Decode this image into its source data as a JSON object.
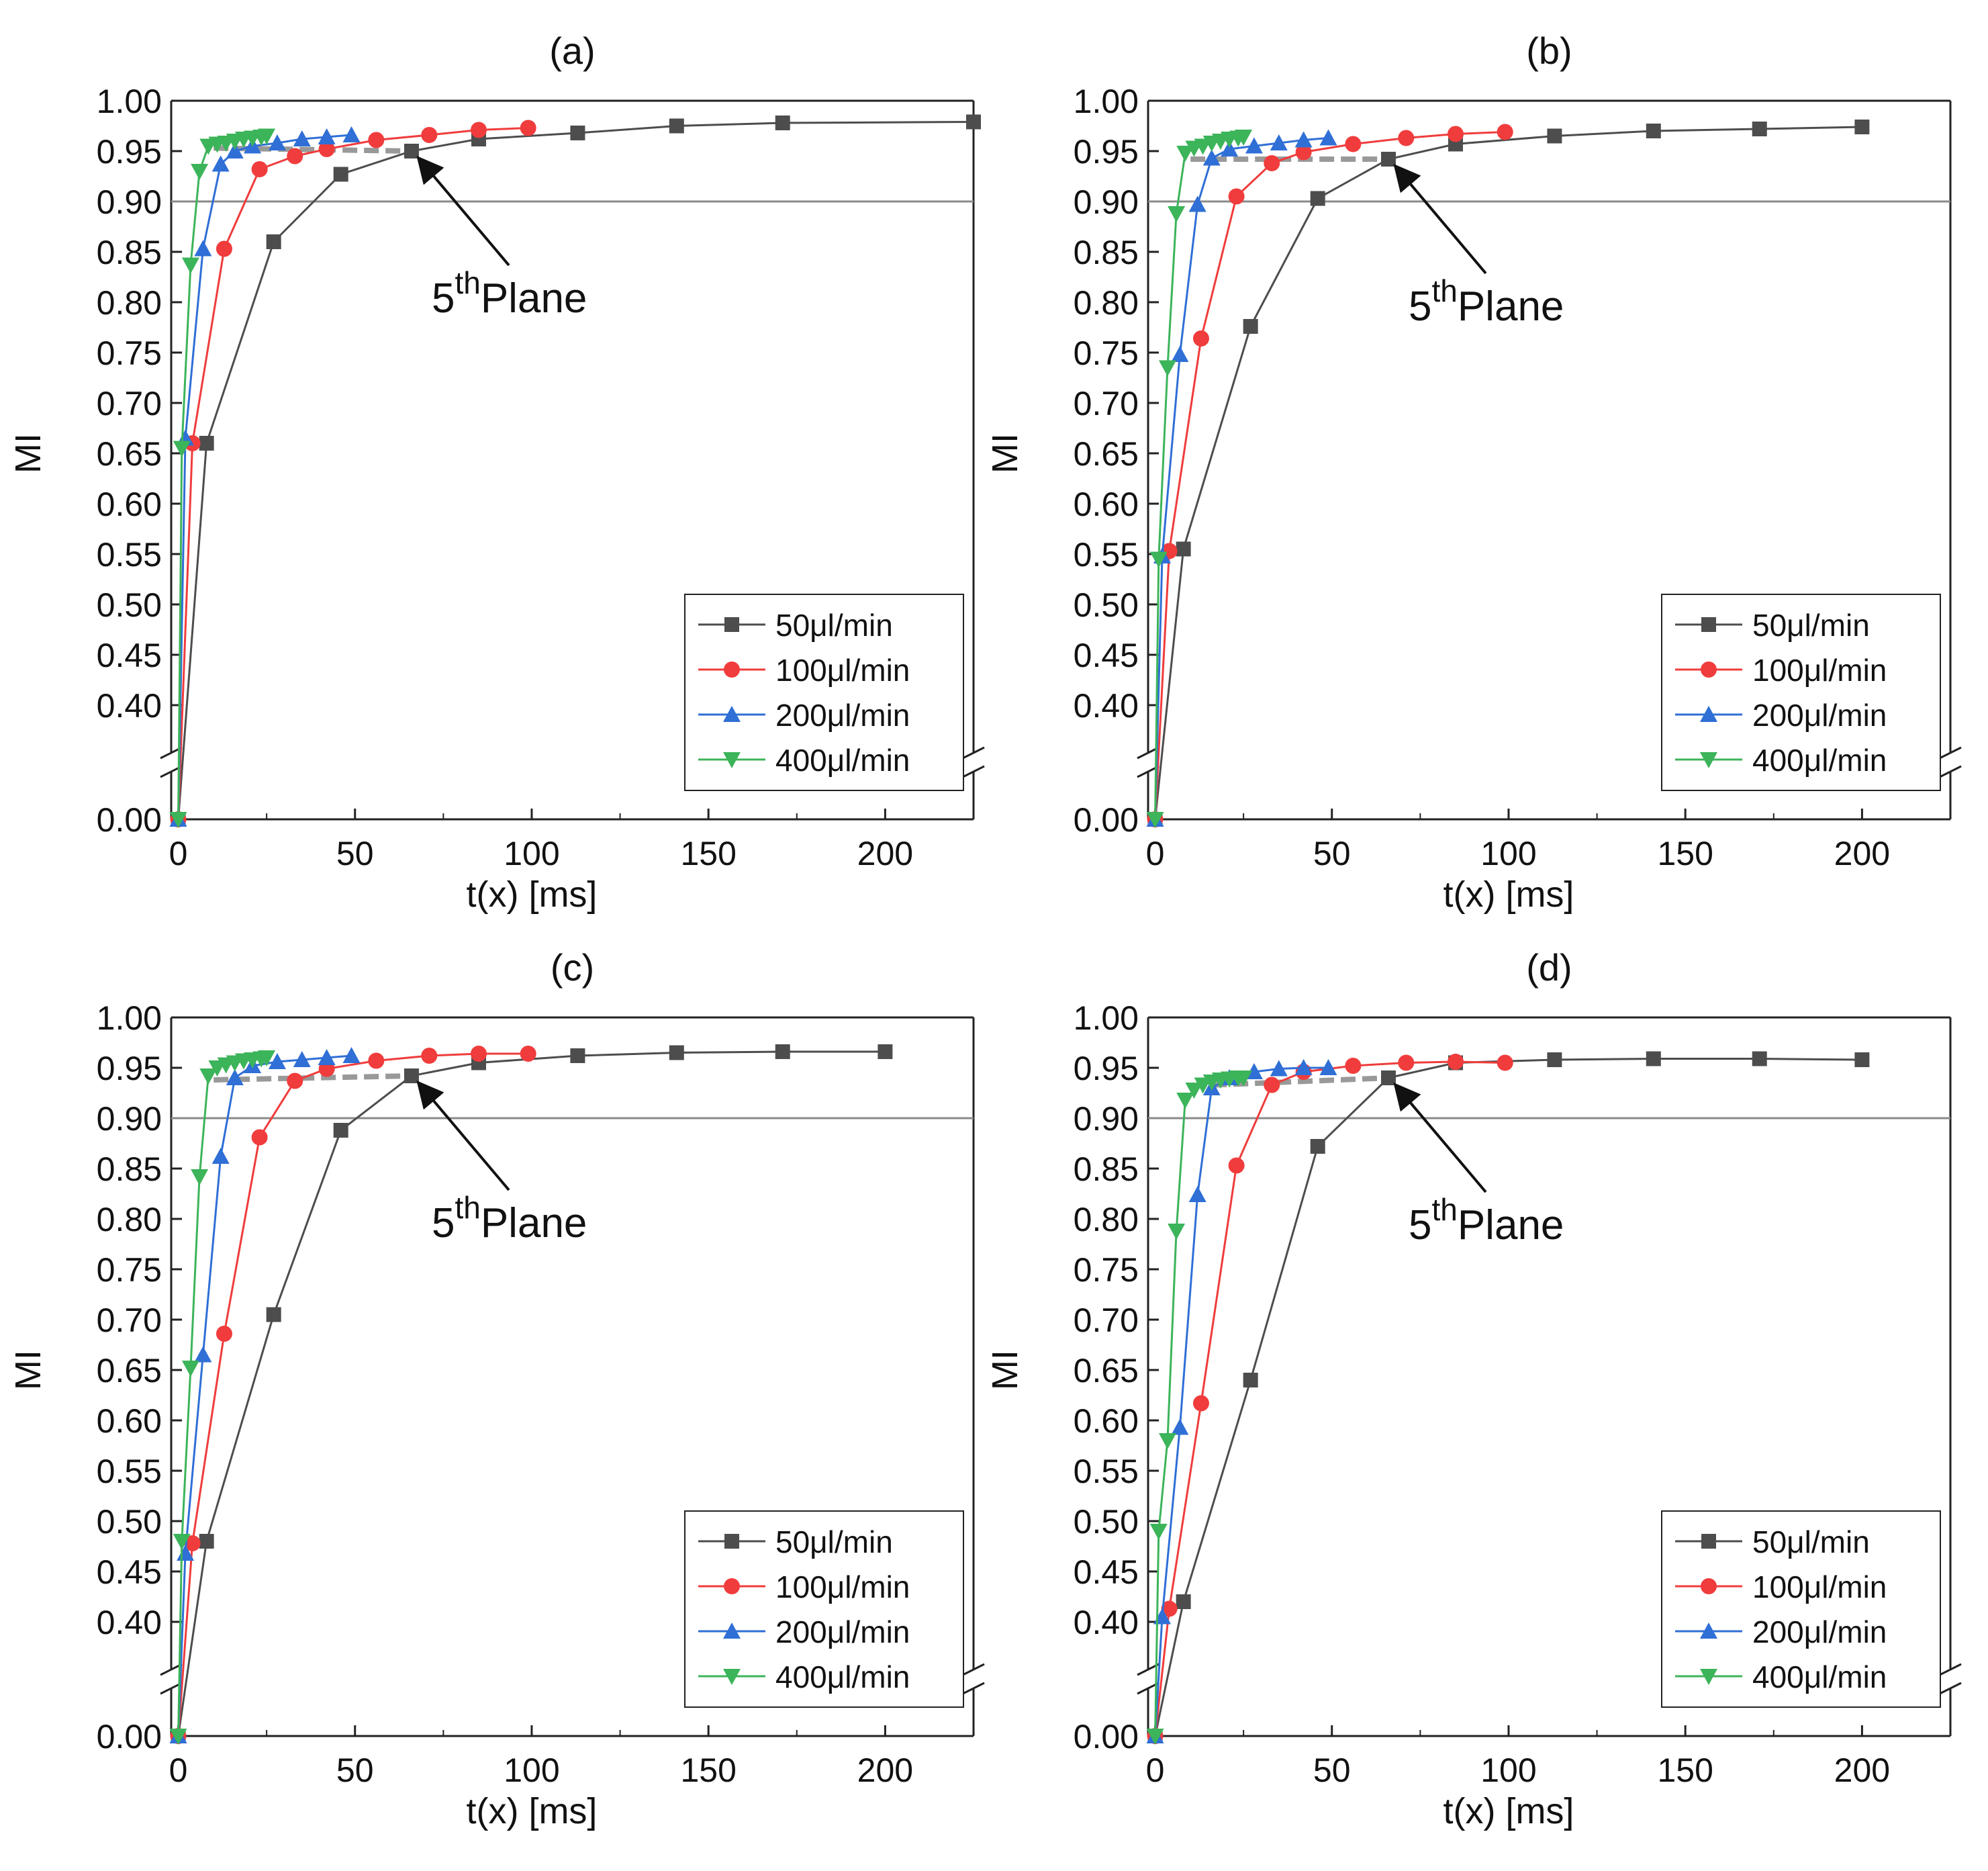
{
  "chart_data": [
    {
      "type": "line",
      "panel_label": "(a)",
      "xlabel": "t(x) [ms]",
      "ylabel": "MI",
      "xlim": [
        -2,
        225
      ],
      "xticks": [
        0,
        50,
        100,
        150,
        200
      ],
      "ylim_upper": [
        0.4,
        1.0
      ],
      "ylim_lower": [
        0.0,
        0.0
      ],
      "yticks": [
        0.0,
        0.4,
        0.45,
        0.5,
        0.55,
        0.6,
        0.65,
        0.7,
        0.75,
        0.8,
        0.85,
        0.9,
        0.95,
        1.0
      ],
      "axis_break": "between 0.00 and 0.40",
      "reference_line": 0.9,
      "annotation": {
        "text": "5",
        "superscript": "th",
        "suffix": "Plane",
        "target_x": 66,
        "target_y": 0.95
      },
      "dashed_line": {
        "from": [
          10,
          0.953
        ],
        "to": [
          66,
          0.95
        ]
      },
      "legend_position": "bottom-right",
      "series": [
        {
          "name": "50μl/min",
          "color": "#4d4d4d",
          "marker": "square",
          "x": [
            0,
            8,
            27,
            46,
            66,
            85,
            113,
            141,
            171,
            225
          ],
          "y": [
            0.0,
            0.66,
            0.86,
            0.927,
            0.95,
            0.962,
            0.968,
            0.975,
            0.978,
            0.979
          ]
        },
        {
          "name": "100μl/min",
          "color": "#f03c3c",
          "marker": "circle",
          "x": [
            0,
            4,
            13,
            23,
            33,
            42,
            56,
            71,
            85,
            99
          ],
          "y": [
            0.0,
            0.66,
            0.853,
            0.932,
            0.945,
            0.952,
            0.961,
            0.966,
            0.971,
            0.973
          ]
        },
        {
          "name": "200μl/min",
          "color": "#2f6fd6",
          "marker": "triangle-up",
          "x": [
            0,
            2,
            7,
            12,
            16,
            21,
            28,
            35,
            42,
            49
          ],
          "y": [
            0.0,
            0.665,
            0.853,
            0.937,
            0.95,
            0.955,
            0.958,
            0.962,
            0.964,
            0.966
          ]
        },
        {
          "name": "400μl/min",
          "color": "#3cb45a",
          "marker": "triangle-down",
          "x": [
            0,
            1,
            3.5,
            6,
            8.5,
            11,
            13.5,
            16,
            18.5,
            21,
            23.5,
            25
          ],
          "y": [
            0.0,
            0.655,
            0.837,
            0.93,
            0.955,
            0.957,
            0.958,
            0.96,
            0.962,
            0.963,
            0.964,
            0.965
          ]
        }
      ]
    },
    {
      "type": "line",
      "panel_label": "(b)",
      "xlabel": "t(x) [ms]",
      "ylabel": "MI",
      "xlim": [
        -2,
        225
      ],
      "xticks": [
        0,
        50,
        100,
        150,
        200
      ],
      "ylim_upper": [
        0.4,
        1.0
      ],
      "ylim_lower": [
        0.0,
        0.0
      ],
      "yticks": [
        0.0,
        0.4,
        0.45,
        0.5,
        0.55,
        0.6,
        0.65,
        0.7,
        0.75,
        0.8,
        0.85,
        0.9,
        0.95,
        1.0
      ],
      "axis_break": "between 0.00 and 0.40",
      "reference_line": 0.9,
      "annotation": {
        "text": "5",
        "superscript": "th",
        "suffix": "Plane",
        "target_x": 66,
        "target_y": 0.942
      },
      "dashed_line": {
        "from": [
          10,
          0.942
        ],
        "to": [
          66,
          0.942
        ]
      },
      "legend_position": "bottom-right",
      "series": [
        {
          "name": "50μl/min",
          "color": "#4d4d4d",
          "marker": "square",
          "x": [
            0,
            8,
            27,
            46,
            66,
            85,
            113,
            141,
            171,
            200
          ],
          "y": [
            0.0,
            0.555,
            0.776,
            0.903,
            0.942,
            0.957,
            0.965,
            0.97,
            0.972,
            0.974
          ]
        },
        {
          "name": "100μl/min",
          "color": "#f03c3c",
          "marker": "circle",
          "x": [
            0,
            4,
            13,
            23,
            33,
            42,
            56,
            71,
            85,
            99
          ],
          "y": [
            0.0,
            0.553,
            0.764,
            0.905,
            0.938,
            0.949,
            0.957,
            0.963,
            0.967,
            0.969
          ]
        },
        {
          "name": "200μl/min",
          "color": "#2f6fd6",
          "marker": "triangle-up",
          "x": [
            0,
            2,
            7,
            12,
            16,
            21,
            28,
            35,
            42,
            49
          ],
          "y": [
            0.0,
            0.548,
            0.748,
            0.897,
            0.943,
            0.952,
            0.955,
            0.958,
            0.961,
            0.963
          ]
        },
        {
          "name": "400μl/min",
          "color": "#3cb45a",
          "marker": "triangle-down",
          "x": [
            0,
            1,
            3.5,
            6,
            8.5,
            11,
            13.5,
            16,
            18.5,
            21,
            23.5,
            25
          ],
          "y": [
            0.0,
            0.545,
            0.735,
            0.888,
            0.948,
            0.953,
            0.955,
            0.958,
            0.96,
            0.962,
            0.963,
            0.964
          ]
        }
      ]
    },
    {
      "type": "line",
      "panel_label": "(c)",
      "xlabel": "t(x) [ms]",
      "ylabel": "MI",
      "xlim": [
        -2,
        225
      ],
      "xticks": [
        0,
        50,
        100,
        150,
        200
      ],
      "ylim_upper": [
        0.4,
        1.0
      ],
      "ylim_lower": [
        0.0,
        0.0
      ],
      "yticks": [
        0.0,
        0.4,
        0.45,
        0.5,
        0.55,
        0.6,
        0.65,
        0.7,
        0.75,
        0.8,
        0.85,
        0.9,
        0.95,
        1.0
      ],
      "axis_break": "between 0.00 and 0.40",
      "reference_line": 0.9,
      "annotation": {
        "text": "5",
        "superscript": "th",
        "suffix": "Plane",
        "target_x": 66,
        "target_y": 0.942
      },
      "dashed_line": {
        "from": [
          10,
          0.938
        ],
        "to": [
          66,
          0.942
        ]
      },
      "legend_position": "bottom-right",
      "series": [
        {
          "name": "50μl/min",
          "color": "#4d4d4d",
          "marker": "square",
          "x": [
            0,
            8,
            27,
            46,
            66,
            85,
            113,
            141,
            171,
            200
          ],
          "y": [
            0.0,
            0.48,
            0.705,
            0.888,
            0.942,
            0.955,
            0.962,
            0.965,
            0.966,
            0.966
          ]
        },
        {
          "name": "100μl/min",
          "color": "#f03c3c",
          "marker": "circle",
          "x": [
            0,
            4,
            13,
            23,
            33,
            42,
            56,
            71,
            85,
            99
          ],
          "y": [
            0.0,
            0.478,
            0.686,
            0.881,
            0.937,
            0.949,
            0.957,
            0.962,
            0.964,
            0.964
          ]
        },
        {
          "name": "200μl/min",
          "color": "#2f6fd6",
          "marker": "triangle-up",
          "x": [
            0,
            2,
            7,
            12,
            16,
            21,
            28,
            35,
            42,
            49
          ],
          "y": [
            0.0,
            0.468,
            0.665,
            0.862,
            0.94,
            0.952,
            0.956,
            0.958,
            0.96,
            0.962
          ]
        },
        {
          "name": "400μl/min",
          "color": "#3cb45a",
          "marker": "triangle-down",
          "x": [
            0,
            1,
            3.5,
            6,
            8.5,
            11,
            13.5,
            16,
            18.5,
            21,
            23.5,
            25
          ],
          "y": [
            0.0,
            0.48,
            0.652,
            0.842,
            0.942,
            0.95,
            0.953,
            0.955,
            0.957,
            0.958,
            0.959,
            0.96
          ]
        }
      ]
    },
    {
      "type": "line",
      "panel_label": "(d)",
      "xlabel": "t(x) [ms]",
      "ylabel": "MI",
      "xlim": [
        -2,
        225
      ],
      "xticks": [
        0,
        50,
        100,
        150,
        200
      ],
      "ylim_upper": [
        0.4,
        1.0
      ],
      "ylim_lower": [
        0.0,
        0.0
      ],
      "yticks": [
        0.0,
        0.4,
        0.45,
        0.5,
        0.55,
        0.6,
        0.65,
        0.7,
        0.75,
        0.8,
        0.85,
        0.9,
        0.95,
        1.0
      ],
      "axis_break": "between 0.00 and 0.40",
      "reference_line": 0.9,
      "annotation": {
        "text": "5",
        "superscript": "th",
        "suffix": "Plane",
        "target_x": 66,
        "target_y": 0.94
      },
      "dashed_line": {
        "from": [
          10,
          0.932
        ],
        "to": [
          66,
          0.94
        ]
      },
      "legend_position": "bottom-right",
      "series": [
        {
          "name": "50μl/min",
          "color": "#4d4d4d",
          "marker": "square",
          "x": [
            0,
            8,
            27,
            46,
            66,
            85,
            113,
            141,
            171,
            200
          ],
          "y": [
            0.0,
            0.42,
            0.64,
            0.872,
            0.94,
            0.955,
            0.958,
            0.959,
            0.959,
            0.958
          ]
        },
        {
          "name": "100μl/min",
          "color": "#f03c3c",
          "marker": "circle",
          "x": [
            0,
            4,
            13,
            23,
            33,
            42,
            56,
            71,
            85,
            99
          ],
          "y": [
            0.0,
            0.413,
            0.617,
            0.853,
            0.933,
            0.946,
            0.952,
            0.955,
            0.956,
            0.955
          ]
        },
        {
          "name": "200μl/min",
          "color": "#2f6fd6",
          "marker": "triangle-up",
          "x": [
            0,
            2,
            7,
            12,
            16,
            21,
            28,
            35,
            42,
            49
          ],
          "y": [
            0.0,
            0.405,
            0.593,
            0.824,
            0.93,
            0.94,
            0.946,
            0.949,
            0.95,
            0.95
          ]
        },
        {
          "name": "400μl/min",
          "color": "#3cb45a",
          "marker": "triangle-down",
          "x": [
            0,
            1,
            3.5,
            6,
            8.5,
            11,
            13.5,
            16,
            18.5,
            21,
            23.5,
            25
          ],
          "y": [
            0.0,
            0.49,
            0.58,
            0.788,
            0.918,
            0.928,
            0.933,
            0.936,
            0.938,
            0.939,
            0.94,
            0.94
          ]
        }
      ]
    }
  ]
}
